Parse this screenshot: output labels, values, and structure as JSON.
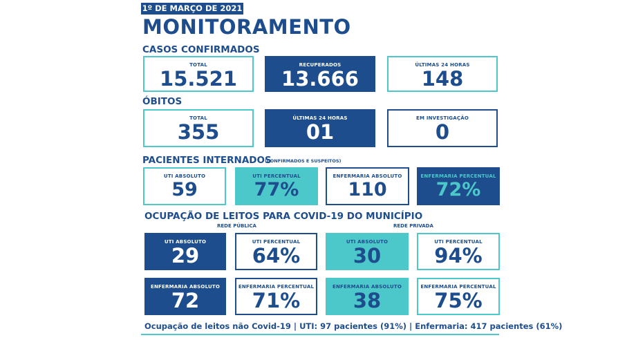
{
  "date": "1º DE MARÇO DE 2021",
  "title": "MONITORAMENTO",
  "casos": {
    "heading": "CASOS CONFIRMADOS",
    "total": {
      "label": "TOTAL",
      "value": "15.521"
    },
    "recuperados": {
      "label": "RECUPERADOS",
      "value": "13.666"
    },
    "ultimas24": {
      "label": "ÚLTIMAS 24 HORAS",
      "value": "148"
    }
  },
  "obitos": {
    "heading": "ÓBITOS",
    "total": {
      "label": "TOTAL",
      "value": "355"
    },
    "ultimas24": {
      "label": "ÚLTIMAS 24 HORAS",
      "value": "01"
    },
    "investigacao": {
      "label": "EM INVESTIGAÇÃO",
      "value": "0"
    }
  },
  "internados": {
    "heading": "PACIENTES INTERNADOS",
    "note": "(CONFIRMADOS E SUSPEITOS)",
    "uti_abs": {
      "label": "UTI ABSOLUTO",
      "value": "59"
    },
    "uti_pct": {
      "label": "UTI PERCENTUAL",
      "value": "77%"
    },
    "enf_abs": {
      "label": "ENFERMARIA ABSOLUTO",
      "value": "110"
    },
    "enf_pct": {
      "label": "ENFERMARIA PERCENTUAL",
      "value": "72%"
    }
  },
  "ocupacao": {
    "heading": "OCUPAÇÃO DE LEITOS PARA COVID-19 DO MUNICÍPIO",
    "publica": {
      "label": "REDE PÚBLICA",
      "uti_abs": {
        "label": "UTI ABSOLUTO",
        "value": "29"
      },
      "uti_pct": {
        "label": "UTI PERCENTUAL",
        "value": "64%"
      },
      "enf_abs": {
        "label": "ENFERMARIA ABSOLUTO",
        "value": "72"
      },
      "enf_pct": {
        "label": "ENFERMARIA PERCENTUAL",
        "value": "71%"
      }
    },
    "privada": {
      "label": "REDE PRIVADA",
      "uti_abs": {
        "label": "UTI ABSOLUTO",
        "value": "30"
      },
      "uti_pct": {
        "label": "UTI PERCENTUAL",
        "value": "94%"
      },
      "enf_abs": {
        "label": "ENFERMARIA ABSOLUTO",
        "value": "38"
      },
      "enf_pct": {
        "label": "ENFERMARIA PERCENTUAL",
        "value": "75%"
      }
    }
  },
  "footer": "Ocupação de leitos não Covid-19 | UTI: 97 pacientes (91%) | Enfermaria: 417 pacientes (61%)",
  "colors": {
    "navy": "#1d4d8c",
    "teal": "#4cc8cb",
    "background": "#ffffff"
  }
}
